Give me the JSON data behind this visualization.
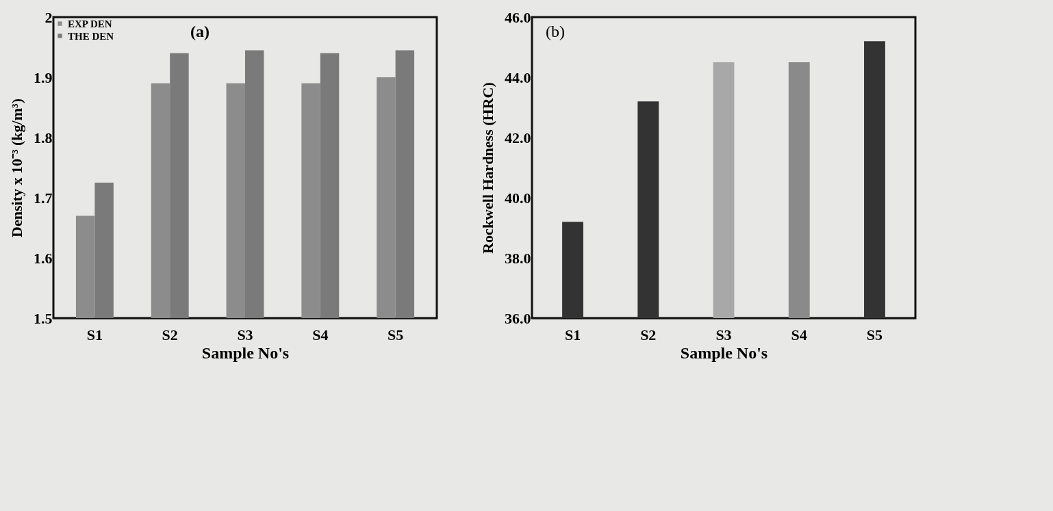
{
  "chart_data": [
    {
      "type": "bar",
      "xlabel": "Sample No's",
      "ylabel": "Density x 10⁻³ (kg/m³)",
      "categories": [
        "S1",
        "S2",
        "S3",
        "S4",
        "S5"
      ],
      "series": [
        {
          "name": "EXP DEN",
          "color": "#8c8c8c",
          "values": [
            1.67,
            1.89,
            1.89,
            1.89,
            1.9
          ]
        },
        {
          "name": "THE DEN",
          "color": "#7a7a7a",
          "values": [
            1.725,
            1.94,
            1.945,
            1.94,
            1.945
          ]
        }
      ],
      "ylim": [
        1.5,
        2
      ],
      "yticks": [
        1.5,
        1.6,
        1.7,
        1.8,
        1.9,
        2
      ],
      "grid": false,
      "legend": "top left",
      "annotations": [
        "(a)"
      ]
    },
    {
      "type": "bar",
      "xlabel": "Sample No's",
      "ylabel": "Rockwell Hardness (HRC)",
      "categories": [
        "S1",
        "S2",
        "S3",
        "S4",
        "S5"
      ],
      "values": [
        39.2,
        43.2,
        44.5,
        44.5,
        45.2
      ],
      "colors": [
        "#333333",
        "#333333",
        "#a8a8a8",
        "#8a8a8a",
        "#333333"
      ],
      "ylim": [
        36,
        46
      ],
      "yticks": [
        {
          "value": 36,
          "label": "36.0"
        },
        {
          "value": 38,
          "label": "38.0"
        },
        {
          "value": 40,
          "label": "40.0"
        },
        {
          "value": 42,
          "label": "42.0"
        },
        {
          "value": 44,
          "label": "44.0"
        },
        {
          "value": 46,
          "label": "46.0"
        }
      ],
      "grid": false,
      "annotations": [
        "(b)"
      ]
    }
  ]
}
